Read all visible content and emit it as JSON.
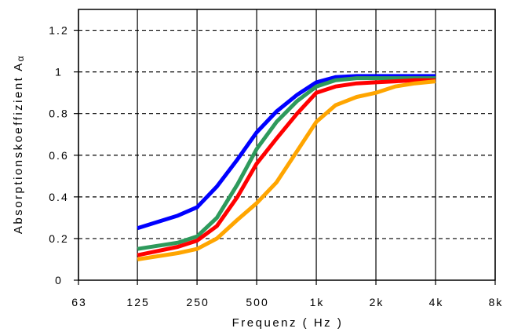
{
  "chart_data": {
    "type": "line",
    "xlabel": "Frequenz ( Hz )",
    "ylabel": "Absorptionskoeffizient Alpha",
    "ylabel_prefix": "Absorptionskoeffizient A",
    "ylabel_symbol": "lpha",
    "x_scale": "log2",
    "x_ticks": [
      {
        "value": 63,
        "label": "63"
      },
      {
        "value": 125,
        "label": "125"
      },
      {
        "value": 250,
        "label": "250"
      },
      {
        "value": 500,
        "label": "500"
      },
      {
        "value": 1000,
        "label": "1k"
      },
      {
        "value": 2000,
        "label": "2k"
      },
      {
        "value": 4000,
        "label": "4k"
      },
      {
        "value": 8000,
        "label": "8k"
      }
    ],
    "y_ticks": [
      {
        "value": 0,
        "label": "0"
      },
      {
        "value": 0.2,
        "label": "0.2"
      },
      {
        "value": 0.4,
        "label": "0.4"
      },
      {
        "value": 0.6,
        "label": "0.6"
      },
      {
        "value": 0.8,
        "label": "0.8"
      },
      {
        "value": 1,
        "label": "1"
      },
      {
        "value": 1.2,
        "label": "1.2"
      }
    ],
    "xlim": [
      63,
      8000
    ],
    "ylim": [
      0,
      1.3
    ],
    "grid": "horizontal dashed",
    "legend": "none",
    "series": [
      {
        "color": "#0000ff",
        "x": [
          125,
          200,
          250,
          315,
          400,
          500,
          630,
          800,
          1000,
          1250,
          1600,
          2000,
          2500,
          3150,
          4000
        ],
        "y": [
          0.25,
          0.31,
          0.35,
          0.45,
          0.58,
          0.71,
          0.81,
          0.89,
          0.95,
          0.975,
          0.98,
          0.98,
          0.98,
          0.98,
          0.98
        ]
      },
      {
        "color": "#2e9a5c",
        "x": [
          125,
          200,
          250,
          315,
          400,
          500,
          630,
          800,
          1000,
          1250,
          1600,
          2000,
          2500,
          3150,
          4000
        ],
        "y": [
          0.15,
          0.18,
          0.21,
          0.3,
          0.46,
          0.63,
          0.76,
          0.86,
          0.93,
          0.96,
          0.97,
          0.97,
          0.97,
          0.97,
          0.97
        ]
      },
      {
        "color": "#ff0000",
        "x": [
          125,
          200,
          250,
          315,
          400,
          500,
          630,
          800,
          1000,
          1250,
          1600,
          2000,
          2500,
          3150,
          4000
        ],
        "y": [
          0.12,
          0.16,
          0.19,
          0.26,
          0.4,
          0.56,
          0.68,
          0.8,
          0.9,
          0.93,
          0.945,
          0.95,
          0.955,
          0.96,
          0.96
        ]
      },
      {
        "color": "#ffa500",
        "x": [
          125,
          200,
          250,
          315,
          400,
          500,
          630,
          800,
          1000,
          1250,
          1600,
          2000,
          2500,
          3150,
          4000
        ],
        "y": [
          0.1,
          0.13,
          0.15,
          0.2,
          0.29,
          0.37,
          0.47,
          0.62,
          0.76,
          0.84,
          0.88,
          0.9,
          0.93,
          0.945,
          0.955
        ]
      }
    ]
  }
}
